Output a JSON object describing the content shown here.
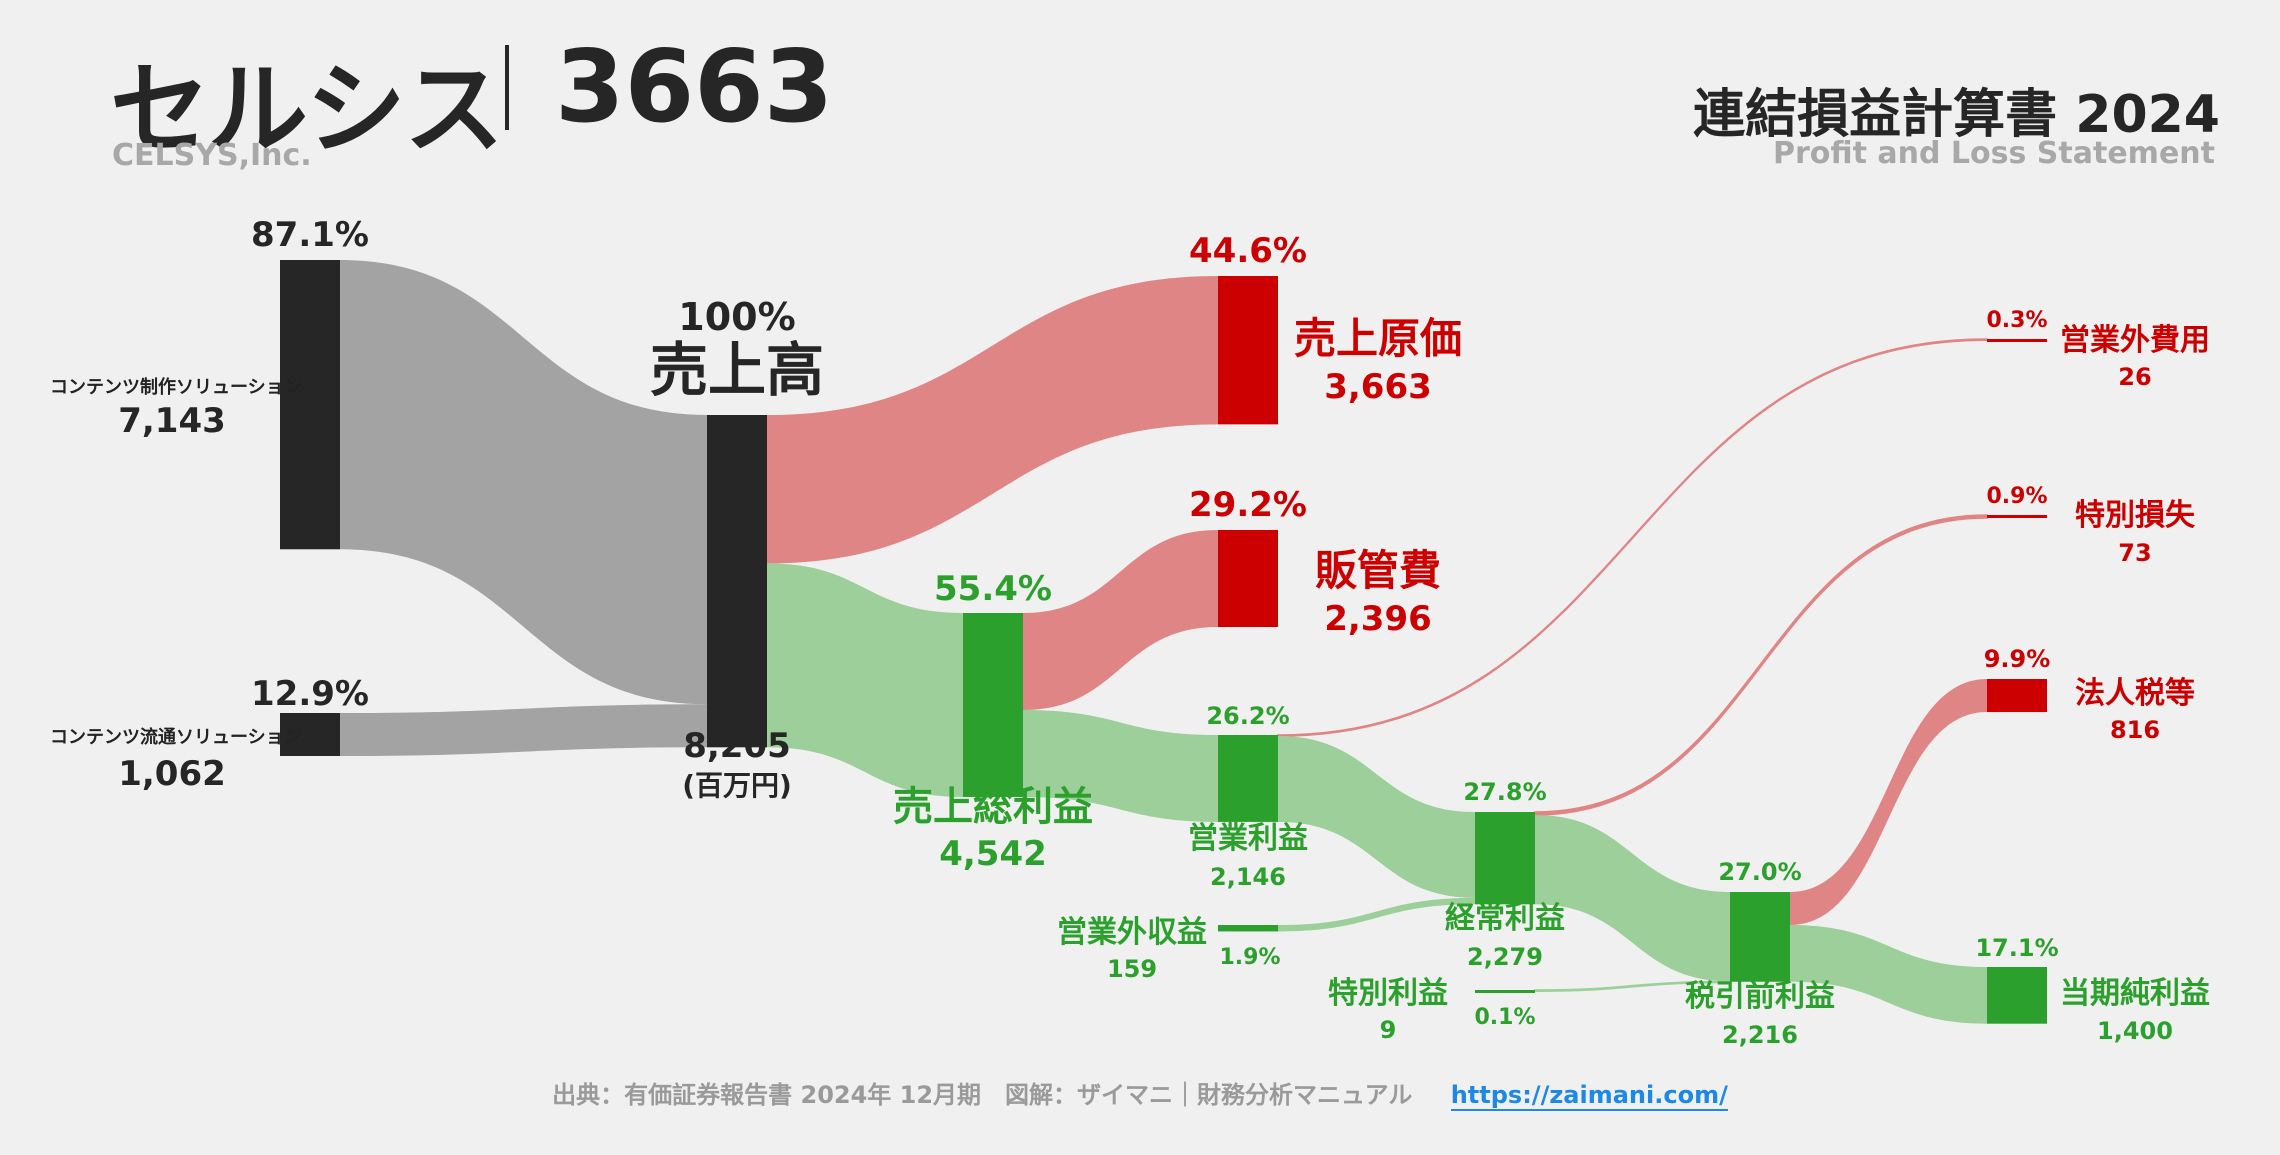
{
  "header": {
    "company_name": "セルシス",
    "stock_code": "3663",
    "company_en": "CELSYS,Inc.",
    "statement_title": "連結損益計算書 2024",
    "statement_subtitle": "Profit and Loss Statement"
  },
  "footer": {
    "source": "出典：有価証券報告書 2024年 12月期　図解：ザイマニ｜財務分析マニュアル",
    "url": "https://zaimani.com/"
  },
  "colors": {
    "dark": "#262626",
    "gray_flow": "#a3a3a3",
    "green": "#2ca02c",
    "green_flow": "#9ccf9a",
    "red": "#cc0000",
    "red_flow": "#e08585"
  },
  "chart_data": {
    "type": "sankey",
    "unit": "(百万円)",
    "nodes": [
      {
        "id": "seisaku",
        "label": "コンテンツ制作ソリューション",
        "value": "7,143",
        "pct": "87.1%",
        "color": "dark"
      },
      {
        "id": "ryutsu",
        "label": "コンテンツ流通ソリューション",
        "value": "1,062",
        "pct": "12.9%",
        "color": "dark"
      },
      {
        "id": "uriage",
        "label": "売上高",
        "value": "8,205",
        "pct": "100%",
        "unit": "(百万円)",
        "color": "dark"
      },
      {
        "id": "genka",
        "label": "売上原価",
        "value": "3,663",
        "pct": "44.6%",
        "color": "red"
      },
      {
        "id": "arari",
        "label": "売上総利益",
        "value": "4,542",
        "pct": "55.4%",
        "color": "green"
      },
      {
        "id": "hankan",
        "label": "販管費",
        "value": "2,396",
        "pct": "29.2%",
        "color": "red"
      },
      {
        "id": "eigyo",
        "label": "営業利益",
        "value": "2,146",
        "pct": "26.2%",
        "color": "green"
      },
      {
        "id": "eigyogaishueki",
        "label": "営業外収益",
        "value": "159",
        "pct": "1.9%",
        "color": "green"
      },
      {
        "id": "keijo",
        "label": "経常利益",
        "value": "2,279",
        "pct": "27.8%",
        "color": "green"
      },
      {
        "id": "eigyogaihiyo",
        "label": "営業外費用",
        "value": "26",
        "pct": "0.3%",
        "color": "red"
      },
      {
        "id": "tokubetsurieki",
        "label": "特別利益",
        "value": "9",
        "pct": "0.1%",
        "color": "green"
      },
      {
        "id": "tokubetsusonshitsu",
        "label": "特別損失",
        "value": "73",
        "pct": "0.9%",
        "color": "red"
      },
      {
        "id": "zeimae",
        "label": "税引前利益",
        "value": "2,216",
        "pct": "27.0%",
        "color": "green"
      },
      {
        "id": "hojinzei",
        "label": "法人税等",
        "value": "816",
        "pct": "9.9%",
        "color": "red"
      },
      {
        "id": "junrieki",
        "label": "当期純利益",
        "value": "1,400",
        "pct": "17.1%",
        "color": "green"
      }
    ],
    "links": [
      {
        "source": "seisaku",
        "target": "uriage",
        "value": 7143
      },
      {
        "source": "ryutsu",
        "target": "uriage",
        "value": 1062
      },
      {
        "source": "uriage",
        "target": "genka",
        "value": 3663
      },
      {
        "source": "uriage",
        "target": "arari",
        "value": 4542
      },
      {
        "source": "arari",
        "target": "hankan",
        "value": 2396
      },
      {
        "source": "arari",
        "target": "eigyo",
        "value": 2146
      },
      {
        "source": "eigyo",
        "target": "eigyogaihiyo",
        "value": 26
      },
      {
        "source": "eigyo",
        "target": "keijo",
        "value": 2120
      },
      {
        "source": "eigyogaishueki",
        "target": "keijo",
        "value": 159
      },
      {
        "source": "keijo",
        "target": "tokubetsusonshitsu",
        "value": 73
      },
      {
        "source": "keijo",
        "target": "zeimae",
        "value": 2206
      },
      {
        "source": "tokubetsurieki",
        "target": "zeimae",
        "value": 9
      },
      {
        "source": "zeimae",
        "target": "hojinzei",
        "value": 816
      },
      {
        "source": "zeimae",
        "target": "junrieki",
        "value": 1400
      }
    ]
  }
}
